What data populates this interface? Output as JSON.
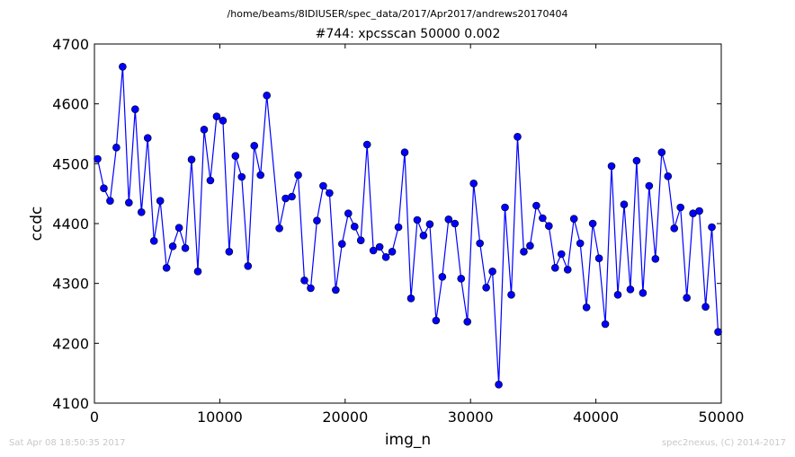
{
  "header": {
    "path": "/home/beams/8IDIUSER/spec_data/2017/Apr2017/andrews20170404",
    "scan_title": "#744: xpcsscan 50000 0.002"
  },
  "footer": {
    "timestamp": "Sat Apr 08 18:50:35 2017",
    "credit": "spec2nexus, (C) 2014-2017"
  },
  "chart_data": {
    "type": "line",
    "title": "#744: xpcsscan 50000 0.002",
    "xlabel": "img_n",
    "ylabel": "ccdc",
    "xlim": [
      0,
      50000
    ],
    "ylim": [
      4100,
      4700
    ],
    "xticks": [
      0,
      10000,
      20000,
      30000,
      40000,
      50000
    ],
    "yticks": [
      4100,
      4200,
      4300,
      4400,
      4500,
      4600,
      4700
    ],
    "grid": false,
    "marker": "circle",
    "line_color": "#0000ff",
    "marker_color": "#0000ff",
    "series": [
      {
        "x": [
          250,
          750,
          1250,
          1750,
          2250,
          2750,
          3250,
          3750,
          4250,
          4750,
          5250,
          5750,
          6250,
          6750,
          7250,
          7750,
          8250,
          8750,
          9250,
          9750,
          10250,
          10750,
          11250,
          11750,
          12250,
          12750,
          13250,
          13750,
          14750,
          15250,
          15750,
          16250,
          16750,
          17250,
          17750,
          18250,
          18750,
          19250,
          19750,
          20250,
          20750,
          21250,
          21750,
          22250,
          22750,
          23250,
          23750,
          24250,
          24750,
          25250,
          25750,
          26250,
          26750,
          27250,
          27750,
          28250,
          28750,
          29250,
          29750,
          30250,
          30750,
          31250,
          31750,
          32250,
          32750,
          33250,
          33750,
          34250,
          34750,
          35250,
          35750,
          36250,
          36750,
          37250,
          37750,
          38250,
          38750,
          39250,
          39750,
          40250,
          40750,
          41250,
          41750,
          42250,
          42750,
          43250,
          43750,
          44250,
          44750,
          45250,
          45750,
          46250,
          46750,
          47250,
          47750,
          48250,
          48750,
          49250,
          49750
        ],
        "y": [
          4508,
          4459,
          4438,
          4527,
          4662,
          4435,
          4591,
          4419,
          4543,
          4371,
          4438,
          4326,
          4362,
          4393,
          4359,
          4507,
          4320,
          4557,
          4472,
          4579,
          4572,
          4353,
          4513,
          4478,
          4329,
          4530,
          4481,
          4614,
          4392,
          4442,
          4445,
          4481,
          4305,
          4292,
          4405,
          4463,
          4451,
          4289,
          4366,
          4417,
          4395,
          4372,
          4532,
          4355,
          4361,
          4344,
          4353,
          4394,
          4519,
          4275,
          4406,
          4380,
          4399,
          4238,
          4311,
          4407,
          4400,
          4308,
          4236,
          4467,
          4367,
          4293,
          4320,
          4131,
          4427,
          4281,
          4545,
          4353,
          4363,
          4430,
          4409,
          4396,
          4326,
          4349,
          4323,
          4408,
          4367,
          4260,
          4400,
          4342,
          4232,
          4496,
          4281,
          4432,
          4290,
          4505,
          4284,
          4463,
          4341,
          4519,
          4479,
          4392,
          4427,
          4276,
          4417,
          4421,
          4261,
          4394,
          4219
        ]
      }
    ]
  }
}
